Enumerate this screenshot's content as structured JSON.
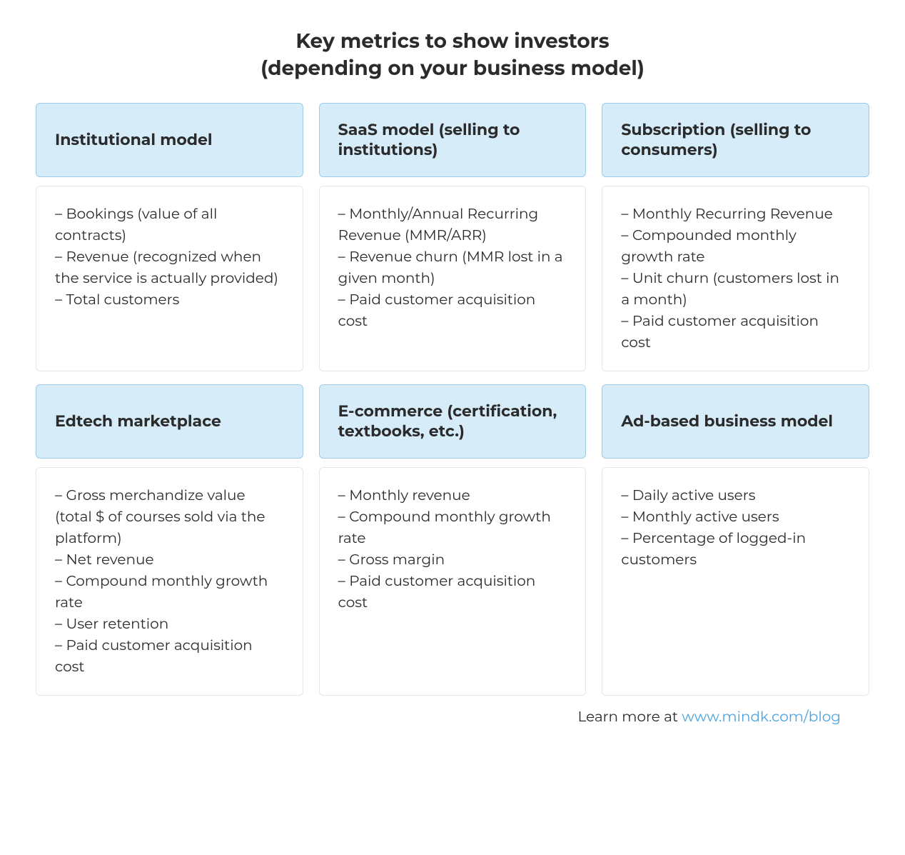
{
  "title_line1": "Key metrics to show investors",
  "title_line2": "(depending on your business model)",
  "styling": {
    "type": "infographic",
    "layout": "grid-2x3",
    "background_color": "#ffffff",
    "header_bg": "#d7ecf9",
    "header_border": "#9ecbe6",
    "body_border": "#e6e6e6",
    "text_color": "#2b2b2b",
    "dash_color": "#6b6b6b",
    "link_color": "#4aa3df",
    "title_fontsize": 28,
    "header_fontsize": 22,
    "body_fontsize": 20,
    "footer_fontsize": 20,
    "border_radius": 6,
    "grid_gap_col": 22,
    "grid_gap_row": 18
  },
  "cards": [
    {
      "header": "Institutional model",
      "items": [
        "Bookings (value of all contracts)",
        "Revenue (recognized when the service is actually provided)",
        "Total customers"
      ]
    },
    {
      "header": "SaaS model (selling to institutions)",
      "items": [
        "Monthly/Annual Recurring Revenue (MMR/ARR)",
        "Revenue churn (MMR lost in a given month)",
        "Paid customer acquisition cost"
      ]
    },
    {
      "header": "Subscription (selling to consumers)",
      "items": [
        "Monthly Recurring Revenue",
        "Compounded monthly growth rate",
        "Unit churn (customers lost in a month)",
        "Paid customer acquisition cost"
      ]
    },
    {
      "header": "Edtech marketplace",
      "items": [
        "Gross merchandize value (total $ of courses sold via the platform)",
        "Net revenue",
        "Compound monthly growth rate",
        "User retention",
        "Paid customer acquisition cost"
      ]
    },
    {
      "header": "E-commerce (certification, textbooks, etc.)",
      "items": [
        "Monthly revenue",
        "Compound monthly growth rate",
        "Gross margin",
        "Paid customer acquisition cost"
      ]
    },
    {
      "header": "Ad-based business model",
      "items": [
        "Daily active users",
        "Monthly active users",
        "Percentage of logged-in customers"
      ]
    }
  ],
  "footer_prefix": "Learn more at  ",
  "footer_link": "www.mindk.com/blog"
}
